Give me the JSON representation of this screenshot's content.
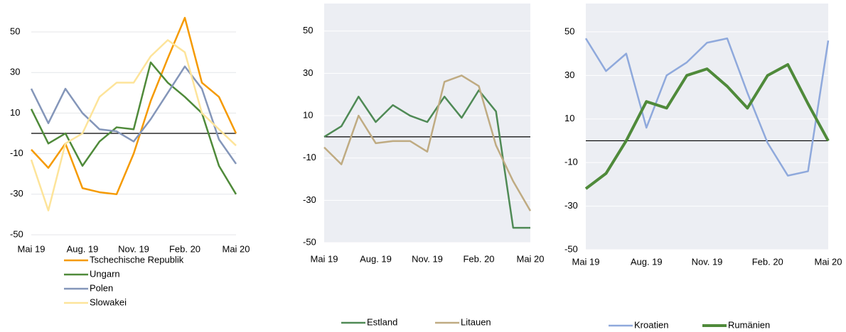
{
  "chart_data": [
    {
      "type": "line",
      "categories": [
        "Mai 19",
        null,
        null,
        "Aug. 19",
        null,
        null,
        "Nov. 19",
        null,
        null,
        "Feb. 20",
        null,
        null,
        "Mai 20"
      ],
      "ylim": [
        -50,
        64
      ],
      "yticks": [
        -50,
        -30,
        -10,
        10,
        30,
        50
      ],
      "grid": true,
      "plot_color": "#ffffff",
      "grid_color": "#e4e6ea",
      "legend": "bottom-vertical",
      "series": [
        {
          "name": "Tschechische Republik",
          "color": "#f59a00",
          "width": 2.5,
          "values": [
            -8,
            -17,
            -5,
            -27,
            -29,
            -30,
            -10,
            16,
            37,
            57,
            25,
            18,
            0
          ]
        },
        {
          "name": "Ungarn",
          "color": "#4f8a3a",
          "width": 2.5,
          "values": [
            12,
            -5,
            0,
            -16,
            -4,
            3,
            2,
            35,
            25,
            18,
            10,
            -16,
            -30
          ]
        },
        {
          "name": "Polen",
          "color": "#8496b9",
          "width": 2.5,
          "values": [
            22,
            5,
            22,
            10,
            2,
            1,
            -4,
            7,
            20,
            33,
            22,
            -3,
            -15
          ]
        },
        {
          "name": "Slowakei",
          "color": "#fde49a",
          "width": 2.5,
          "values": [
            -13,
            -38,
            -5,
            0,
            18,
            25,
            25,
            38,
            46,
            40,
            10,
            2,
            -6
          ]
        }
      ]
    },
    {
      "type": "line",
      "categories": [
        "Mai 19",
        null,
        null,
        "Aug. 19",
        null,
        null,
        "Nov. 19",
        null,
        null,
        "Feb. 20",
        null,
        null,
        "Mai 20"
      ],
      "ylim": [
        -50,
        63
      ],
      "yticks": [
        -50,
        -30,
        -10,
        10,
        30,
        50
      ],
      "grid": true,
      "plot_color": "#eceef3",
      "grid_color": "#ffffff",
      "legend": "bottom-row",
      "series": [
        {
          "name": "Estland",
          "color": "#4f8a55",
          "width": 2.5,
          "values": [
            0,
            5,
            19,
            7,
            15,
            10,
            7,
            19,
            9,
            22,
            12,
            -43,
            -43
          ]
        },
        {
          "name": "Litauen",
          "color": "#bfab82",
          "width": 2.5,
          "values": [
            -5,
            -13,
            10,
            -3,
            -2,
            -2,
            -7,
            26,
            29,
            24,
            -4,
            -21,
            -35
          ]
        }
      ]
    },
    {
      "type": "line",
      "categories": [
        "Mai 19",
        null,
        null,
        "Aug. 19",
        null,
        null,
        "Nov. 19",
        null,
        null,
        "Feb. 20",
        null,
        null,
        "Mai 20"
      ],
      "ylim": [
        -50,
        63
      ],
      "yticks": [
        -50,
        -30,
        -10,
        10,
        30,
        50
      ],
      "grid": true,
      "plot_color": "#eceef3",
      "grid_color": "#ffffff",
      "legend": "bottom-row",
      "series": [
        {
          "name": "Kroatien",
          "color": "#8fa9dc",
          "width": 2.5,
          "values": [
            47,
            32,
            40,
            6,
            30,
            36,
            45,
            47,
            22,
            -1,
            -16,
            -14,
            46
          ]
        },
        {
          "name": "Rumänien",
          "color": "#4f8a3a",
          "width": 4,
          "values": [
            -22,
            -15,
            0,
            18,
            15,
            30,
            33,
            25,
            15,
            30,
            35,
            17,
            0
          ]
        }
      ]
    }
  ]
}
